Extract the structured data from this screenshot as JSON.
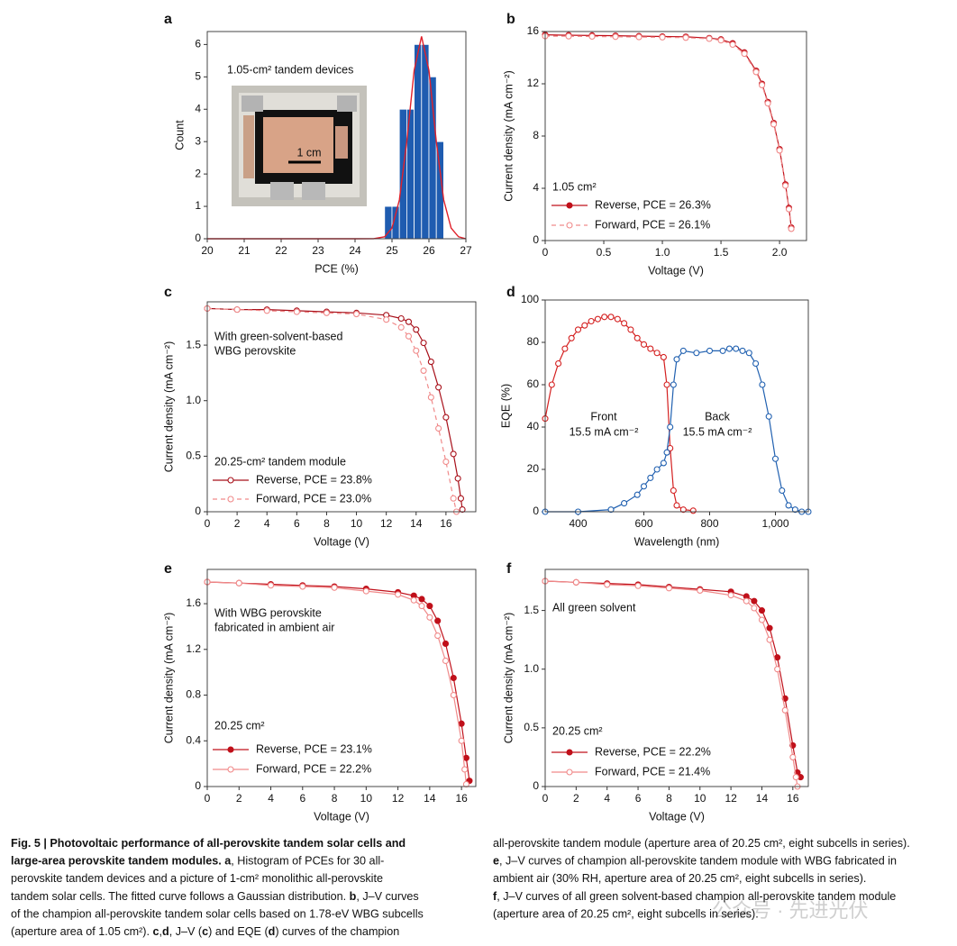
{
  "chart_data": [
    {
      "type": "histogram",
      "label": "a",
      "xlabel": "PCE (%)",
      "ylabel": "Count",
      "bins": [
        24.8,
        25.0,
        25.2,
        25.4,
        25.6,
        25.8,
        26.0,
        26.2,
        26.4
      ],
      "values": [
        1,
        1,
        4,
        4,
        6,
        6,
        5,
        3
      ],
      "color": "#1f5cb0",
      "fit": {
        "color": "#e0202a",
        "x": [
          20,
          24,
          24.5,
          24.8,
          25,
          25.2,
          25.4,
          25.6,
          25.8,
          26,
          26.2,
          26.4,
          26.6,
          26.8,
          27
        ],
        "values": [
          0,
          0,
          0.003,
          0.06,
          0.33,
          1.2,
          3.0,
          5.2,
          6.25,
          5.2,
          3.0,
          1.2,
          0.33,
          0.06,
          0
        ]
      },
      "xlim": [
        20,
        27
      ],
      "xticks": [
        20,
        21,
        22,
        23,
        24,
        25,
        26,
        27
      ],
      "ylim": [
        0,
        6.4
      ],
      "yticks": [
        0,
        1,
        2,
        3,
        4,
        5,
        6
      ],
      "annotations": [
        "1.05-cm² tandem devices",
        "1 cm"
      ]
    },
    {
      "type": "line",
      "label": "b",
      "xlabel": "Voltage (V)",
      "ylabel": "Current density (mA cm⁻²)",
      "series": [
        {
          "name": "Reverse, PCE = 26.3%",
          "color": "#c0101a",
          "marker": "filled",
          "dash": false,
          "x": [
            0,
            0.2,
            0.4,
            0.6,
            0.8,
            1.0,
            1.2,
            1.4,
            1.5,
            1.6,
            1.7,
            1.8,
            1.85,
            1.9,
            1.95,
            2.0,
            2.05,
            2.08,
            2.1
          ],
          "values": [
            15.75,
            15.72,
            15.7,
            15.68,
            15.65,
            15.62,
            15.6,
            15.5,
            15.4,
            15.1,
            14.4,
            13.0,
            12.0,
            10.6,
            9.0,
            7.0,
            4.3,
            2.5,
            1.0
          ]
        },
        {
          "name": "Forward, PCE = 26.1%",
          "color": "#f08a8a",
          "marker": "open",
          "dash": true,
          "x": [
            0,
            0.2,
            0.4,
            0.6,
            0.8,
            1.0,
            1.2,
            1.4,
            1.5,
            1.6,
            1.7,
            1.8,
            1.85,
            1.9,
            1.95,
            2.0,
            2.05,
            2.08,
            2.1
          ],
          "values": [
            15.65,
            15.64,
            15.62,
            15.6,
            15.58,
            15.56,
            15.53,
            15.45,
            15.33,
            15.0,
            14.3,
            12.9,
            11.9,
            10.5,
            8.9,
            6.9,
            4.2,
            2.4,
            0.9
          ]
        }
      ],
      "xlim": [
        0,
        2.23
      ],
      "xticks": [
        0,
        0.5,
        {
          "value": 1,
          "label": "1.0"
        },
        1.5,
        {
          "value": 2,
          "label": "2.0"
        }
      ],
      "ylim": [
        0,
        16
      ],
      "yticks": [
        0,
        4,
        8,
        12,
        16
      ],
      "legend": "lower left",
      "annotations": [
        "1.05 cm²"
      ]
    },
    {
      "type": "line",
      "label": "c",
      "xlabel": "Voltage (V)",
      "ylabel": "Current density (mA cm⁻²)",
      "series": [
        {
          "name": "Reverse, PCE = 23.8%",
          "color": "#a8101a",
          "marker": "open",
          "dash": false,
          "x": [
            0,
            2,
            4,
            6,
            8,
            10,
            12,
            13,
            13.5,
            14,
            14.5,
            15,
            15.5,
            16,
            16.5,
            16.8,
            17.0,
            17.1
          ],
          "values": [
            1.83,
            1.82,
            1.82,
            1.81,
            1.8,
            1.79,
            1.77,
            1.74,
            1.71,
            1.64,
            1.52,
            1.35,
            1.12,
            0.85,
            0.52,
            0.3,
            0.12,
            0.02
          ]
        },
        {
          "name": "Forward, PCE = 23.0%",
          "color": "#f08a8a",
          "marker": "open",
          "dash": true,
          "x": [
            0,
            2,
            4,
            6,
            8,
            10,
            12,
            13,
            13.5,
            14,
            14.5,
            15,
            15.5,
            16,
            16.5,
            16.7
          ],
          "values": [
            1.83,
            1.82,
            1.81,
            1.8,
            1.79,
            1.78,
            1.73,
            1.66,
            1.58,
            1.45,
            1.27,
            1.03,
            0.75,
            0.45,
            0.12,
            0
          ]
        }
      ],
      "xlim": [
        0,
        18
      ],
      "xticks": [
        0,
        2,
        4,
        6,
        8,
        10,
        12,
        14,
        16
      ],
      "ylim": [
        0,
        1.89
      ],
      "yticks": [
        0,
        0.5,
        {
          "value": 1,
          "label": "1.0"
        },
        1.5
      ],
      "legend": "lower left",
      "annotations": [
        "With green-solvent-based",
        "WBG perovskite",
        "20.25-cm² tandem module"
      ]
    },
    {
      "type": "line",
      "label": "d",
      "xlabel": "Wavelength (nm)",
      "ylabel": "EQE (%)",
      "series": [
        {
          "color": "#d42020",
          "marker": "open",
          "dash": false,
          "x": [
            300,
            320,
            340,
            360,
            380,
            400,
            420,
            440,
            460,
            480,
            500,
            520,
            540,
            560,
            580,
            600,
            620,
            640,
            660,
            670,
            680,
            690,
            700,
            720,
            750
          ],
          "values": [
            44,
            60,
            70,
            77,
            82,
            86,
            88,
            90,
            91,
            92,
            92,
            91,
            89,
            86,
            82,
            79,
            77,
            75,
            73,
            60,
            30,
            10,
            3,
            1,
            0.5
          ]
        },
        {
          "color": "#2060b0",
          "marker": "open",
          "dash": false,
          "x": [
            300,
            400,
            500,
            540,
            580,
            600,
            620,
            640,
            660,
            670,
            680,
            690,
            700,
            720,
            760,
            800,
            840,
            860,
            880,
            900,
            920,
            940,
            960,
            980,
            1000,
            1020,
            1040,
            1060,
            1080,
            1100
          ],
          "values": [
            0,
            0,
            1,
            4,
            8,
            12,
            16,
            20,
            23,
            28,
            40,
            60,
            72,
            76,
            75,
            76,
            76,
            77,
            77,
            76,
            75,
            70,
            60,
            45,
            25,
            10,
            3,
            1,
            0,
            0
          ]
        }
      ],
      "xlim": [
        300,
        1100
      ],
      "xticks": [
        400,
        600,
        800,
        {
          "value": 1000,
          "label": "1,000"
        }
      ],
      "ylim": [
        0,
        100
      ],
      "yticks": [
        0,
        20,
        40,
        60,
        80,
        100
      ],
      "annotations": [
        "Front",
        "15.5 mA cm⁻²",
        "Back",
        "15.5 mA cm⁻²"
      ]
    },
    {
      "type": "line",
      "label": "e",
      "xlabel": "Voltage (V)",
      "ylabel": "Current density (mA cm⁻²)",
      "series": [
        {
          "name": "Reverse, PCE = 23.1%",
          "color": "#c0101a",
          "marker": "filled",
          "dash": false,
          "x": [
            0,
            2,
            4,
            6,
            8,
            10,
            12,
            13,
            13.5,
            14,
            14.5,
            15,
            15.5,
            16,
            16.3,
            16.5
          ],
          "values": [
            1.79,
            1.78,
            1.77,
            1.76,
            1.75,
            1.73,
            1.7,
            1.67,
            1.64,
            1.58,
            1.45,
            1.25,
            0.95,
            0.55,
            0.25,
            0.05
          ]
        },
        {
          "name": "Forward, PCE = 22.2%",
          "color": "#f08a8a",
          "marker": "open",
          "dash": false,
          "x": [
            0,
            2,
            4,
            6,
            8,
            10,
            12,
            13,
            13.5,
            14,
            14.5,
            15,
            15.5,
            16,
            16.2,
            16.3
          ],
          "values": [
            1.79,
            1.78,
            1.76,
            1.75,
            1.74,
            1.71,
            1.68,
            1.63,
            1.58,
            1.48,
            1.32,
            1.1,
            0.8,
            0.4,
            0.15,
            0.02
          ]
        }
      ],
      "xlim": [
        0,
        16.9
      ],
      "xticks": [
        0,
        2,
        4,
        6,
        8,
        10,
        12,
        14,
        16
      ],
      "ylim": [
        0,
        1.9
      ],
      "yticks": [
        0,
        0.4,
        0.8,
        1.2,
        1.6
      ],
      "legend": "lower left",
      "annotations": [
        "With WBG perovskite",
        "fabricated in ambient air",
        "20.25 cm²"
      ]
    },
    {
      "type": "line",
      "label": "f",
      "xlabel": "Voltage (V)",
      "ylabel": "Current density (mA cm⁻²)",
      "series": [
        {
          "name": "Reverse, PCE = 22.2%",
          "color": "#c0101a",
          "marker": "filled",
          "dash": false,
          "x": [
            0,
            2,
            4,
            6,
            8,
            10,
            12,
            13,
            13.5,
            14,
            14.5,
            15,
            15.5,
            16,
            16.3,
            16.5
          ],
          "values": [
            1.75,
            1.74,
            1.73,
            1.72,
            1.7,
            1.68,
            1.66,
            1.62,
            1.58,
            1.5,
            1.35,
            1.1,
            0.75,
            0.35,
            0.12,
            0.08
          ]
        },
        {
          "name": "Forward, PCE = 21.4%",
          "color": "#f08a8a",
          "marker": "open",
          "dash": false,
          "x": [
            0,
            2,
            4,
            6,
            8,
            10,
            12,
            13,
            13.5,
            14,
            14.5,
            15,
            15.5,
            16,
            16.2,
            16.3
          ],
          "values": [
            1.75,
            1.74,
            1.72,
            1.71,
            1.69,
            1.67,
            1.63,
            1.58,
            1.52,
            1.42,
            1.25,
            1.0,
            0.65,
            0.25,
            0.08,
            0
          ]
        }
      ],
      "xlim": [
        0,
        17
      ],
      "xticks": [
        0,
        2,
        4,
        6,
        8,
        10,
        12,
        14,
        16
      ],
      "ylim": [
        0,
        1.85
      ],
      "yticks": [
        0,
        0.5,
        {
          "value": 1,
          "label": "1.0"
        },
        1.5
      ],
      "legend": "lower left",
      "annotations": [
        "All green solvent",
        "20.25 cm²"
      ]
    }
  ],
  "caption": {
    "left": [
      [
        {
          "text": "Fig. 5 | Photovoltaic performance of all-perovskite tandem solar cells and",
          "bold": true
        }
      ],
      [
        {
          "text": "large-area perovskite tandem modules. a",
          "bold": true
        },
        ", Histogram of PCEs for 30 all-"
      ],
      [
        "perovskite tandem devices and a picture of 1-cm² monolithic all-perovskite"
      ],
      [
        "tandem solar cells. The fitted curve follows a Gaussian distribution. ",
        {
          "text": "b",
          "bold": true
        },
        ", J–V curves"
      ],
      [
        "of the champion all-perovskite tandem solar cells based on 1.78-eV WBG subcells"
      ],
      [
        "(aperture area of 1.05 cm²). ",
        {
          "text": "c",
          "bold": true
        },
        ",",
        {
          "text": "d",
          "bold": true
        },
        ", J–V (",
        {
          "text": "c",
          "bold": true
        },
        ") and EQE (",
        {
          "text": "d",
          "bold": true
        },
        ") curves of the champion"
      ]
    ],
    "right": [
      [
        "all-perovskite tandem module (aperture area of 20.25 cm², eight subcells in series)."
      ],
      [
        {
          "text": "e",
          "bold": true
        },
        ", J–V curves of champion all-perovskite tandem module with WBG fabricated in"
      ],
      [
        "ambient air (30% RH, aperture area of 20.25 cm², eight subcells in series)."
      ],
      [
        {
          "text": "f",
          "bold": true
        },
        ", J–V curves of all green solvent-based champion all-perovskite tandem module"
      ],
      [
        "(aperture area of 20.25 cm², eight subcells in series)."
      ]
    ]
  },
  "watermark": "公众号 · 先进光伏"
}
